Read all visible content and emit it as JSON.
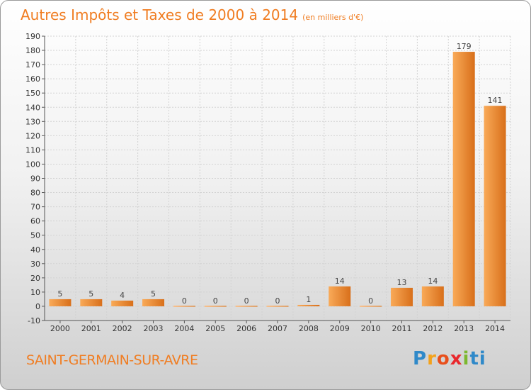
{
  "title": "Autres Impôts et Taxes de 2000 à 2014",
  "subtitle": "(en milliers d'€)",
  "commune": "SAINT-GERMAIN-SUR-AVRE",
  "logo": "Proxiti",
  "colors": {
    "accent": "#f07d22",
    "bar_light": "#f8a654",
    "bar_dark": "#d5701c"
  },
  "chart_data": {
    "type": "bar",
    "title": "Autres Impôts et Taxes de 2000 à 2014",
    "subtitle": "(en milliers d'€)",
    "categories": [
      "2000",
      "2001",
      "2002",
      "2003",
      "2004",
      "2005",
      "2006",
      "2007",
      "2008",
      "2009",
      "2010",
      "2011",
      "2012",
      "2013",
      "2014"
    ],
    "values": [
      5,
      5,
      4,
      5,
      0,
      0,
      0,
      0,
      1,
      14,
      0,
      13,
      14,
      179,
      141
    ],
    "value_labels": [
      "5",
      "5",
      "4",
      "5",
      "0",
      "0",
      "0",
      "0",
      "1",
      "14",
      "0",
      "13",
      "14",
      "179",
      "141"
    ],
    "ylim": [
      -10,
      190
    ],
    "yticks": [
      -10,
      0,
      10,
      20,
      30,
      40,
      50,
      60,
      70,
      80,
      90,
      100,
      110,
      120,
      130,
      140,
      150,
      160,
      170,
      180,
      190
    ],
    "grid": true,
    "legend": "none"
  }
}
